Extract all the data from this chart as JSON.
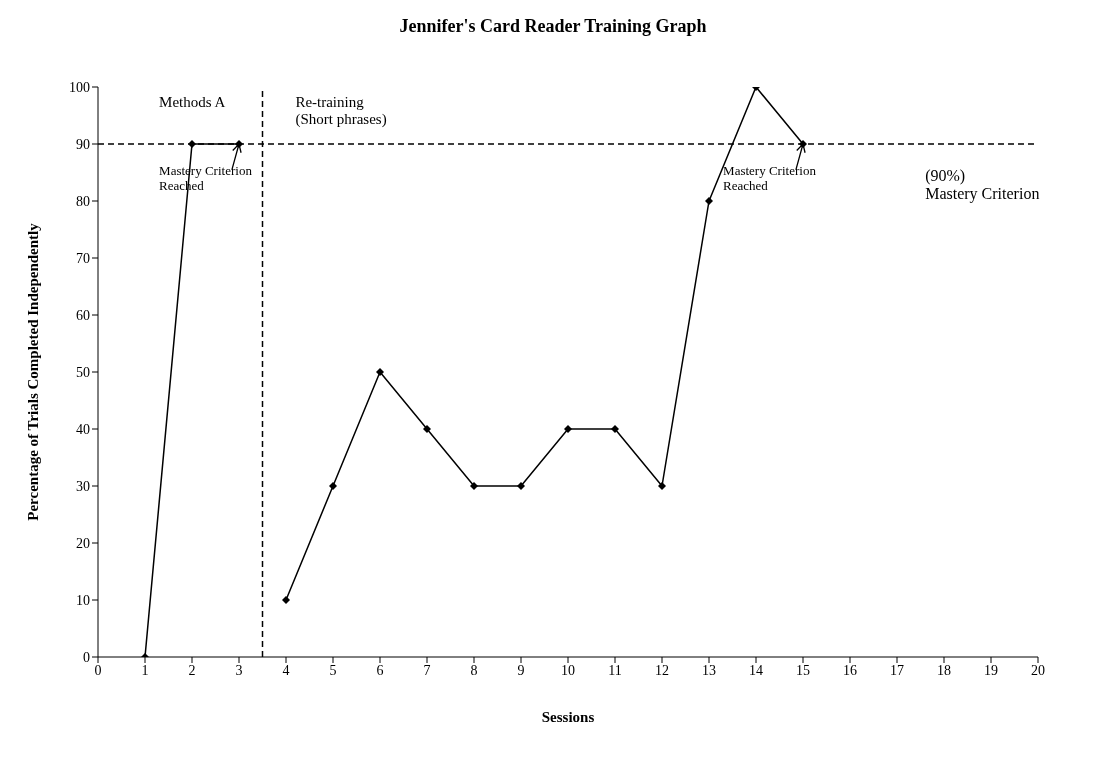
{
  "chart_data": {
    "type": "line",
    "title": "Jennifer's Card Reader Training Graph",
    "xlabel": "Sessions",
    "ylabel": "Percentage of Trials Completed Independently",
    "series": [
      {
        "color": "#000000",
        "x": [
          1,
          2,
          3
        ],
        "values": [
          0,
          90,
          90
        ]
      },
      {
        "color": "#000000",
        "x": [
          4,
          5,
          6,
          7,
          8,
          9,
          10,
          11,
          12,
          13,
          14,
          15
        ],
        "values": [
          10,
          30,
          50,
          40,
          30,
          30,
          40,
          40,
          30,
          80,
          100,
          90
        ]
      }
    ],
    "xlim": [
      0,
      20
    ],
    "xticks": [
      0,
      1,
      2,
      3,
      4,
      5,
      6,
      7,
      8,
      9,
      10,
      11,
      12,
      13,
      14,
      15,
      16,
      17,
      18,
      19,
      20
    ],
    "ylim": [
      0,
      100
    ],
    "yticks": [
      0,
      10,
      20,
      30,
      40,
      50,
      60,
      70,
      80,
      90,
      100
    ],
    "ref_lines": [
      {
        "axis": "x",
        "value": 3.5,
        "label": null,
        "line_style": "dashed",
        "color": "#000000"
      },
      {
        "axis": "y",
        "value": 90,
        "label": "(90%)\nMastery Criterion",
        "line_style": "dashed",
        "color": "#000000"
      }
    ],
    "annotations": [
      "Methods A",
      "Re-training\n(Short phrases)",
      {
        "text": "Mastery Criterion\nReached",
        "x": 3,
        "y": 90
      },
      {
        "text": "Mastery Criterion\nReached",
        "x": 15,
        "y": 90
      }
    ],
    "grid": false,
    "legend": false,
    "marker": "diamond",
    "line_style": "solid"
  }
}
